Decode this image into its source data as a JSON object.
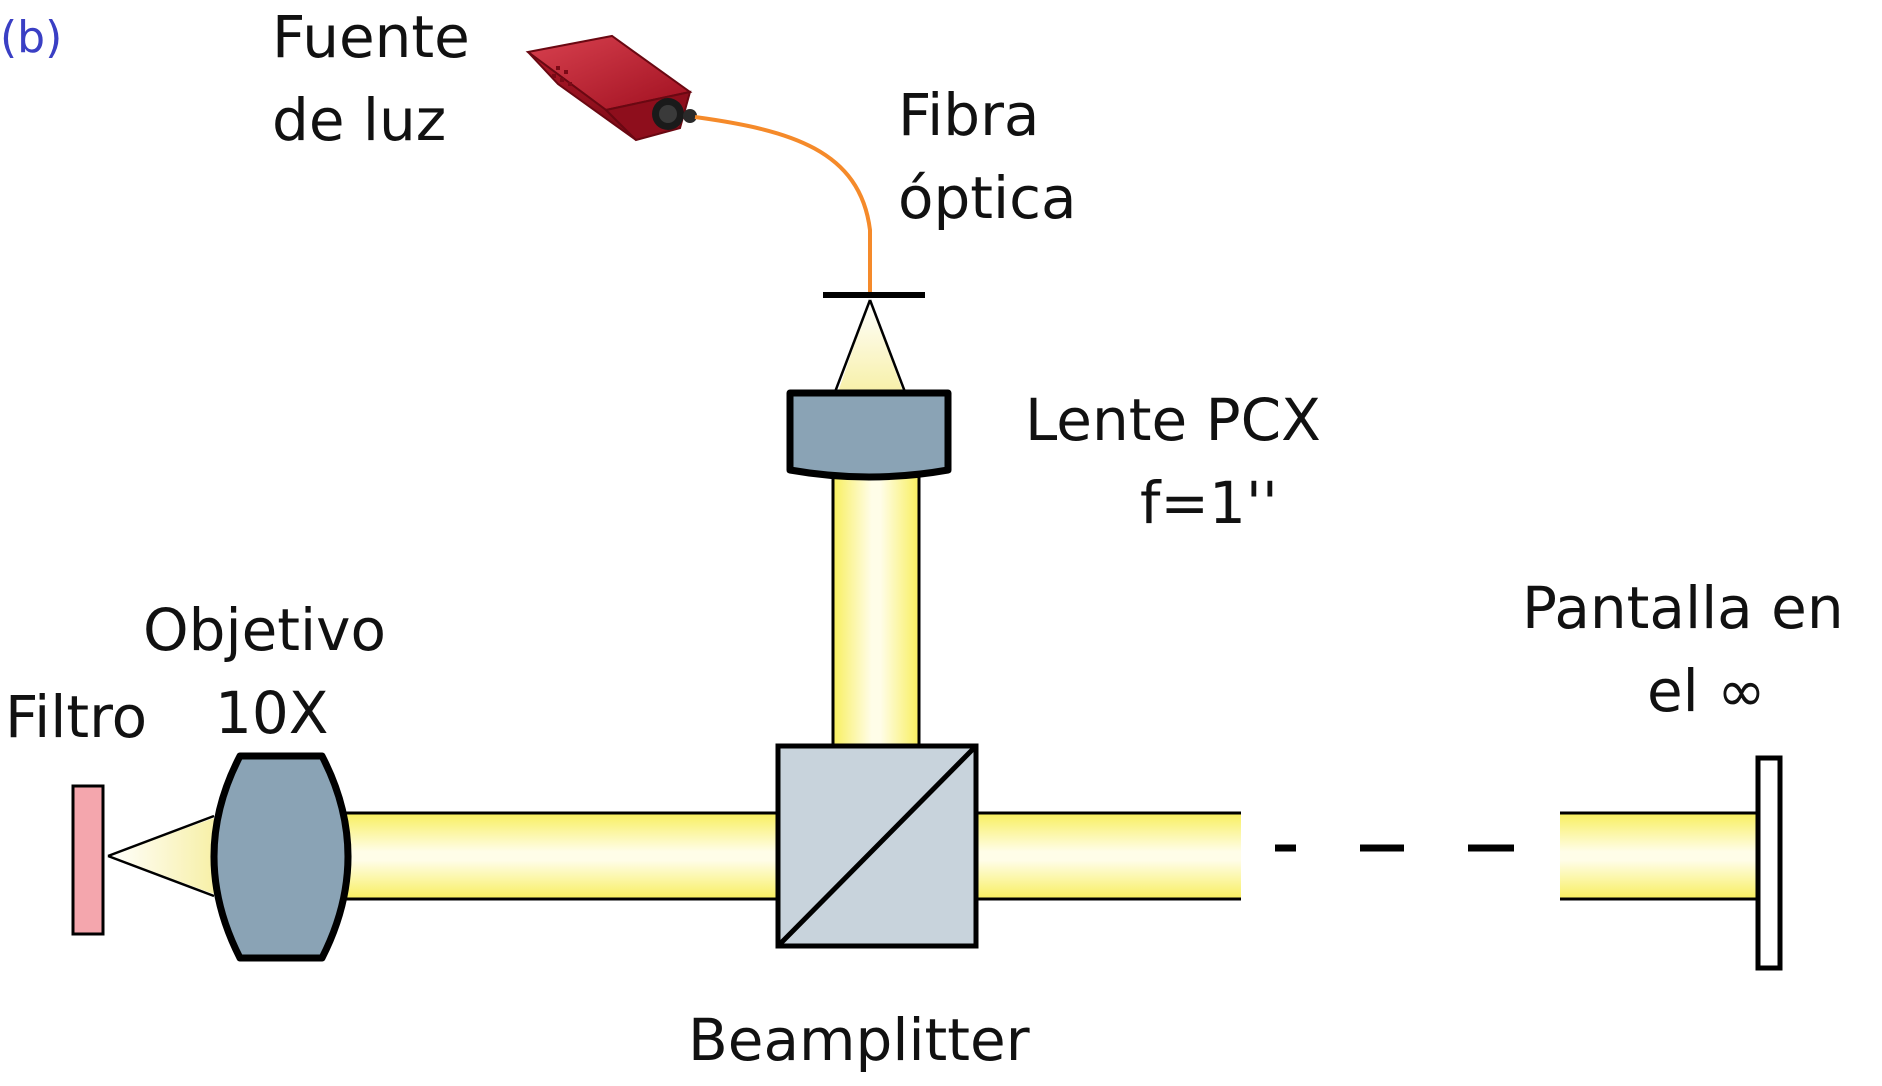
{
  "panel_label": "(b)",
  "labels": {
    "light_source": [
      "Fuente",
      "de luz"
    ],
    "optical_fiber": [
      "Fibra",
      "óptica"
    ],
    "lens": [
      "Lente PCX",
      "f=1''"
    ],
    "objective": [
      "Objetivo",
      "10X"
    ],
    "filter": "Filtro",
    "screen": [
      "Pantalla en",
      "el ∞"
    ],
    "beamsplitter": "Beamplitter"
  },
  "colors": {
    "panel_label": "#3a3fc4",
    "fiber": "#f58a2a",
    "source_body": "#b8182a",
    "lens": "#8aa3b5",
    "beamsplitter": "#c8d3dc",
    "filter": "#f4a6ad",
    "beam_edge": "#fbf170",
    "beam_center": "#fffde6"
  },
  "icons": {
    "light_source": "light-source-box-icon"
  }
}
